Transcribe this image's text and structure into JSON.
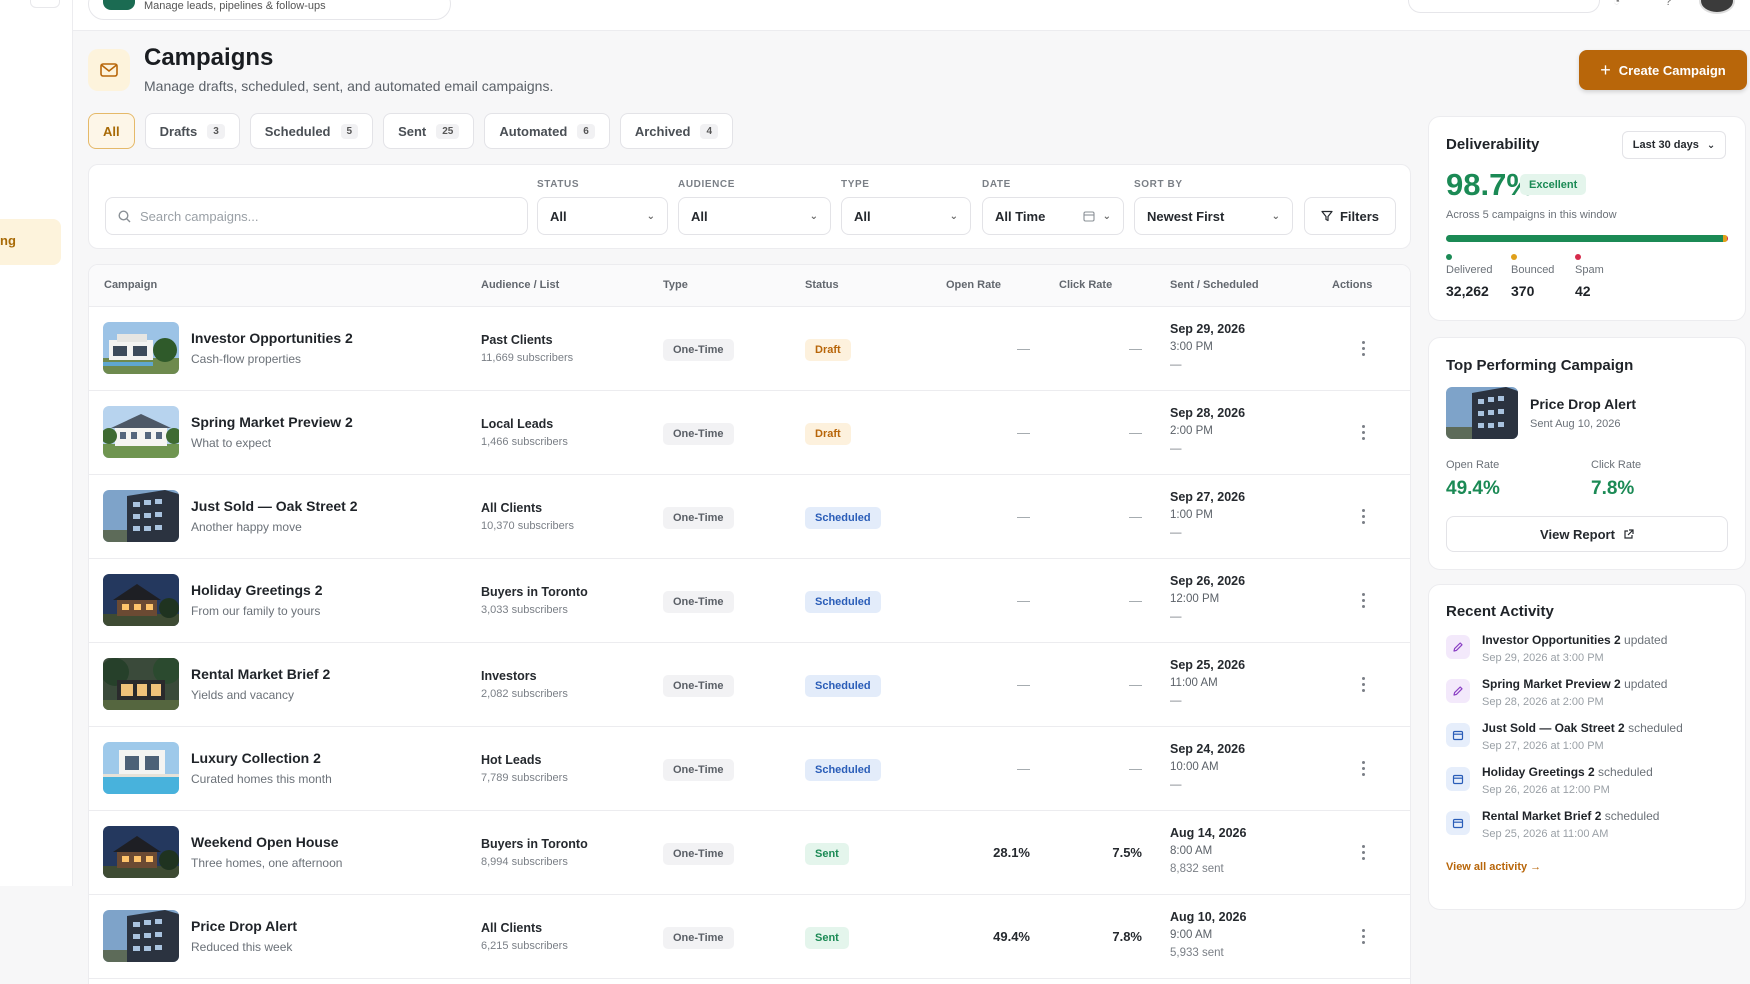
{
  "app": {
    "subtitle": "Manage leads, pipelines & follow-ups",
    "rail_active_label": "ng"
  },
  "header": {
    "title": "Campaigns",
    "subtitle": "Manage drafts, scheduled, sent, and automated email campaigns.",
    "create_label": "Create Campaign"
  },
  "tabs": [
    {
      "label": "All",
      "count": ""
    },
    {
      "label": "Drafts",
      "count": "3"
    },
    {
      "label": "Scheduled",
      "count": "5"
    },
    {
      "label": "Sent",
      "count": "25"
    },
    {
      "label": "Automated",
      "count": "6"
    },
    {
      "label": "Archived",
      "count": "4"
    }
  ],
  "filters": {
    "search_placeholder": "Search campaigns...",
    "status_label": "STATUS",
    "status_value": "All",
    "audience_label": "AUDIENCE",
    "audience_value": "All",
    "type_label": "TYPE",
    "type_value": "All",
    "date_label": "DATE",
    "date_value": "All Time",
    "sort_label": "SORT BY",
    "sort_value": "Newest First",
    "filters_label": "Filters"
  },
  "table": {
    "headers": [
      "Campaign",
      "Audience / List",
      "Type",
      "Status",
      "Open Rate",
      "Click Rate",
      "Sent / Scheduled",
      "Actions"
    ],
    "rows": [
      {
        "name": "Investor Opportunities 2",
        "desc": "Cash-flow properties",
        "audience": "Past Clients",
        "subs": "11,669 subscribers",
        "type": "One-Time",
        "status": "Draft",
        "status_kind": "draft",
        "open": "—",
        "click": "—",
        "date": "Sep 29, 2026",
        "time": "3:00 PM",
        "extra": "—",
        "thumb": "modern"
      },
      {
        "name": "Spring Market Preview 2",
        "desc": "What to expect",
        "audience": "Local Leads",
        "subs": "1,466 subscribers",
        "type": "One-Time",
        "status": "Draft",
        "status_kind": "draft",
        "open": "—",
        "click": "—",
        "date": "Sep 28, 2026",
        "time": "2:00 PM",
        "extra": "—",
        "thumb": "colonial"
      },
      {
        "name": "Just Sold — Oak Street 2",
        "desc": "Another happy move",
        "audience": "All Clients",
        "subs": "10,370 subscribers",
        "type": "One-Time",
        "status": "Scheduled",
        "status_kind": "scheduled",
        "open": "—",
        "click": "—",
        "date": "Sep 27, 2026",
        "time": "1:00 PM",
        "extra": "—",
        "thumb": "tower"
      },
      {
        "name": "Holiday Greetings 2",
        "desc": "From our family to yours",
        "audience": "Buyers in Toronto",
        "subs": "3,033 subscribers",
        "type": "One-Time",
        "status": "Scheduled",
        "status_kind": "scheduled",
        "open": "—",
        "click": "—",
        "date": "Sep 26, 2026",
        "time": "12:00 PM",
        "extra": "—",
        "thumb": "dusk"
      },
      {
        "name": "Rental Market Brief 2",
        "desc": "Yields and vacancy",
        "audience": "Investors",
        "subs": "2,082 subscribers",
        "type": "One-Time",
        "status": "Scheduled",
        "status_kind": "scheduled",
        "open": "—",
        "click": "—",
        "date": "Sep 25, 2026",
        "time": "11:00 AM",
        "extra": "—",
        "thumb": "forest"
      },
      {
        "name": "Luxury Collection 2",
        "desc": "Curated homes this month",
        "audience": "Hot Leads",
        "subs": "7,789 subscribers",
        "type": "One-Time",
        "status": "Scheduled",
        "status_kind": "scheduled",
        "open": "—",
        "click": "—",
        "date": "Sep 24, 2026",
        "time": "10:00 AM",
        "extra": "—",
        "thumb": "pool"
      },
      {
        "name": "Weekend Open House",
        "desc": "Three homes, one afternoon",
        "audience": "Buyers in Toronto",
        "subs": "8,994 subscribers",
        "type": "One-Time",
        "status": "Sent",
        "status_kind": "sent",
        "open": "28.1%",
        "click": "7.5%",
        "date": "Aug 14, 2026",
        "time": "8:00 AM",
        "extra": "8,832 sent",
        "thumb": "dusk"
      },
      {
        "name": "Price Drop Alert",
        "desc": "Reduced this week",
        "audience": "All Clients",
        "subs": "6,215 subscribers",
        "type": "One-Time",
        "status": "Sent",
        "status_kind": "sent",
        "open": "49.4%",
        "click": "7.8%",
        "date": "Aug 10, 2026",
        "time": "9:00 AM",
        "extra": "5,933 sent",
        "thumb": "tower"
      }
    ]
  },
  "deliverability": {
    "title": "Deliverability",
    "period": "Last 30 days",
    "pct": "98.7%",
    "badge": "Excellent",
    "sub": "Across 5 campaigns in this window",
    "delivered_label": "Delivered",
    "delivered": "32,262",
    "bounced_label": "Bounced",
    "bounced": "370",
    "spam_label": "Spam",
    "spam": "42",
    "colors": {
      "delivered": "#1b8a55",
      "bounced": "#e0a01a",
      "spam": "#d62b4b"
    }
  },
  "top_campaign": {
    "title": "Top Performing Campaign",
    "name": "Price Drop Alert",
    "sent": "Sent Aug 10, 2026",
    "open_label": "Open Rate",
    "open": "49.4%",
    "click_label": "Click Rate",
    "click": "7.8%",
    "view_label": "View Report"
  },
  "activity": {
    "title": "Recent Activity",
    "items": [
      {
        "name": "Investor Opportunities 2",
        "verb": "updated",
        "time": "Sep 29, 2026 at 3:00 PM",
        "icon": "edit"
      },
      {
        "name": "Spring Market Preview 2",
        "verb": "updated",
        "time": "Sep 28, 2026 at 2:00 PM",
        "icon": "edit"
      },
      {
        "name": "Just Sold — Oak Street 2",
        "verb": "scheduled",
        "time": "Sep 27, 2026 at 1:00 PM",
        "icon": "cal"
      },
      {
        "name": "Holiday Greetings 2",
        "verb": "scheduled",
        "time": "Sep 26, 2026 at 12:00 PM",
        "icon": "cal"
      },
      {
        "name": "Rental Market Brief 2",
        "verb": "scheduled",
        "time": "Sep 25, 2026 at 11:00 AM",
        "icon": "cal"
      }
    ],
    "view_all": "View all activity →"
  },
  "accent": "#b8660a"
}
